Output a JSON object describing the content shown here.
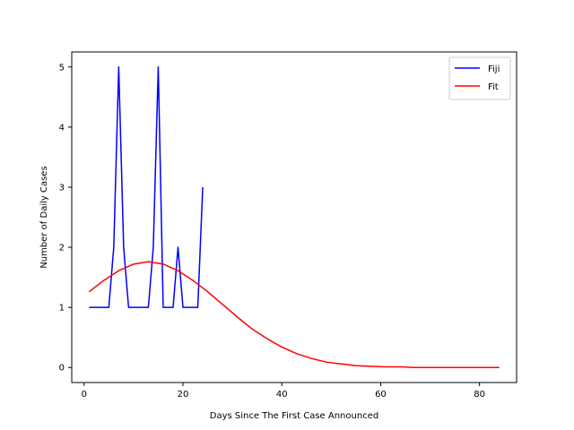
{
  "chart_data": {
    "type": "line",
    "title": "",
    "xlabel": "Days Since The First Case Announced",
    "ylabel": "Number of Daily Cases",
    "xlim": [
      -2.5,
      87.5
    ],
    "ylim": [
      -0.25,
      5.25
    ],
    "xticks": [
      0,
      20,
      40,
      60,
      80
    ],
    "yticks": [
      0,
      1,
      2,
      3,
      4,
      5
    ],
    "grid": false,
    "legend": "top-right",
    "series": [
      {
        "name": "Fiji",
        "color": "#0000ff",
        "x": [
          1,
          2,
          3,
          4,
          5,
          6,
          7,
          8,
          9,
          10,
          11,
          12,
          13,
          14,
          15,
          16,
          17,
          18,
          19,
          20,
          21,
          22,
          23,
          24
        ],
        "y": [
          1,
          1,
          1,
          1,
          1,
          2,
          5,
          2,
          1,
          1,
          1,
          1,
          1,
          2,
          5,
          1,
          1,
          1,
          2,
          1,
          1,
          1,
          1,
          3
        ]
      },
      {
        "name": "Fit",
        "color": "#ff0000",
        "x": [
          1,
          4,
          7,
          10,
          13,
          16,
          19,
          22,
          25,
          28,
          31,
          34,
          37,
          40,
          43,
          46,
          49,
          52,
          55,
          58,
          61,
          64,
          67,
          70,
          73,
          76,
          79,
          84
        ],
        "y": [
          1.26,
          1.45,
          1.61,
          1.72,
          1.76,
          1.72,
          1.61,
          1.45,
          1.26,
          1.05,
          0.84,
          0.64,
          0.48,
          0.34,
          0.23,
          0.15,
          0.09,
          0.06,
          0.03,
          0.02,
          0.01,
          0.01,
          0.0,
          0.0,
          0.0,
          0.0,
          0.0,
          0.0
        ]
      }
    ]
  }
}
